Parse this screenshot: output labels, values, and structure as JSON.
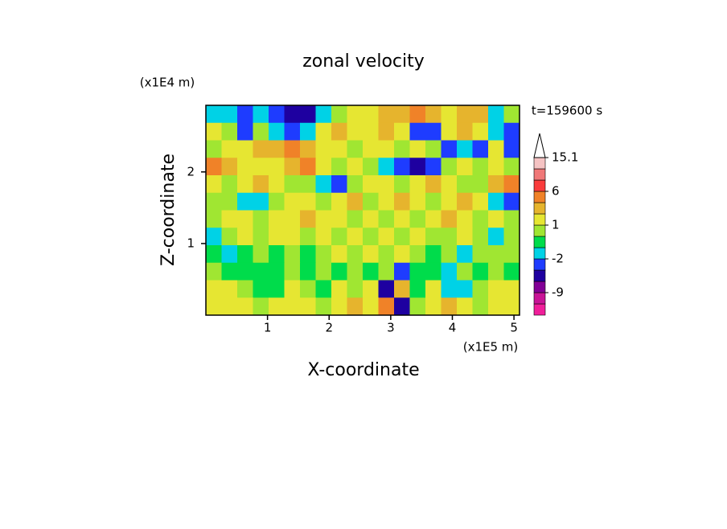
{
  "chart_data": {
    "type": "contour",
    "title": "zonal velocity",
    "x_label": "X-coordinate",
    "y_label": "Z-coordinate",
    "x_unit": "(x1E5 m)",
    "y_unit": "(x1E4 m)",
    "time_label": "t=159600 s",
    "xlim": [
      0,
      5.09
    ],
    "ylim": [
      0,
      2.93
    ],
    "xticks": [
      1,
      2,
      3,
      4,
      5
    ],
    "yticks": [
      1,
      2
    ],
    "z": [
      [
        -1.5,
        -1.5,
        -3,
        -1.5,
        -3,
        -5,
        -5,
        -1.5,
        0.5,
        1.5,
        1.5,
        3,
        3,
        5,
        3,
        1.5,
        3,
        3,
        -1.5,
        0.5
      ],
      [
        1.5,
        0.5,
        -3,
        0.5,
        -1.5,
        -3,
        -1.5,
        1.5,
        3,
        1.5,
        1.5,
        3,
        1.5,
        -3,
        -3,
        1.5,
        3,
        1.5,
        -1.5,
        -3
      ],
      [
        0.5,
        1.5,
        1.5,
        3,
        3,
        5,
        3,
        1.5,
        1.5,
        0.5,
        1.5,
        1.5,
        0.5,
        1.5,
        0.5,
        -3,
        -1.5,
        -3,
        1.5,
        -3
      ],
      [
        5,
        3,
        1.5,
        1.5,
        1.5,
        3,
        5,
        1.5,
        0.5,
        1.5,
        0.5,
        -1.5,
        -3,
        -5,
        -3,
        0.5,
        1.5,
        0.5,
        1.5,
        0.5
      ],
      [
        1.5,
        0.5,
        1.5,
        3,
        1.5,
        0.5,
        0.5,
        -1.5,
        -3,
        0.5,
        1.5,
        1.5,
        0.5,
        1.5,
        3,
        1.5,
        0.5,
        0.5,
        3,
        5
      ],
      [
        0.5,
        0.5,
        -1.5,
        -1.5,
        0.5,
        1.5,
        1.5,
        0.5,
        1.5,
        3,
        0.5,
        1.5,
        3,
        1.5,
        0.5,
        1.5,
        3,
        1.5,
        -1.5,
        -3
      ],
      [
        0.5,
        1.5,
        1.5,
        0.5,
        1.5,
        1.5,
        3,
        1.5,
        1.5,
        0.5,
        1.5,
        0.5,
        1.5,
        0.5,
        1.5,
        3,
        1.5,
        0.5,
        1.5,
        0.5
      ],
      [
        -1.5,
        0.5,
        1.5,
        0.5,
        1.5,
        1.5,
        0.5,
        1.5,
        0.5,
        1.5,
        0.5,
        1.5,
        0.5,
        1.5,
        0.5,
        0.5,
        1.5,
        0.5,
        -1.5,
        0.5
      ],
      [
        -0.5,
        -1.5,
        -0.5,
        0.5,
        -0.5,
        0.5,
        -0.5,
        0.5,
        1.5,
        0.5,
        1.5,
        0.5,
        1.5,
        0.5,
        -0.5,
        0.5,
        -1.5,
        0.5,
        0.5,
        0.5
      ],
      [
        0.5,
        -0.5,
        -0.5,
        -0.5,
        -0.5,
        0.5,
        -0.5,
        0.5,
        -0.5,
        0.5,
        -0.5,
        0.5,
        -3,
        -0.5,
        -0.5,
        -1.5,
        0.5,
        -0.5,
        0.5,
        -0.5
      ],
      [
        1.5,
        1.5,
        0.5,
        -0.5,
        -0.5,
        1.5,
        0.5,
        -0.5,
        1.5,
        0.5,
        1.5,
        -5,
        3,
        -0.5,
        1.5,
        -1.5,
        -1.5,
        0.5,
        1.5,
        1.5
      ],
      [
        1.5,
        1.5,
        1.5,
        0.5,
        1.5,
        1.5,
        1.5,
        0.5,
        1.5,
        3,
        1.5,
        5,
        -5,
        0.5,
        1.5,
        3,
        1.5,
        0.5,
        1.5,
        1.5
      ]
    ],
    "colorbar": {
      "levels": [
        -12,
        -9,
        -6,
        -4,
        -2,
        -1,
        0,
        1,
        2,
        4,
        6,
        9,
        12,
        15.1
      ],
      "colors": [
        "#f01e9a",
        "#c81496",
        "#820096",
        "#1e00a0",
        "#1e3cff",
        "#00d2e6",
        "#00dc4b",
        "#a0e632",
        "#e6e632",
        "#e6b42d",
        "#f08228",
        "#fa3c3c",
        "#f07878",
        "#f5c3c3",
        "#ffffff"
      ],
      "ticks": [
        15.1,
        6,
        1,
        -2,
        -9
      ]
    }
  }
}
